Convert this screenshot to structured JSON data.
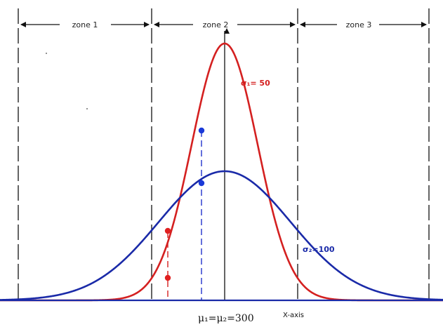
{
  "zones": [
    {
      "label": "zone 1"
    },
    {
      "label": "zone 2"
    },
    {
      "label": "zone 3"
    }
  ],
  "curves": [
    {
      "id": "narrow",
      "mean": 300,
      "sigma": 50,
      "color": "#d42020",
      "label": "σ₁= 50"
    },
    {
      "id": "wide",
      "mean": 300,
      "sigma": 100,
      "color": "#1a2aa8",
      "label": "σ₂=100"
    }
  ],
  "mean_label": "μ₁=μ₂=300",
  "x_axis_label": "X-axis",
  "colors": {
    "axis": "#1a2aa8",
    "boundary": "#111111",
    "dash_red": "#d42020",
    "dash_blue": "#2233cc"
  }
}
